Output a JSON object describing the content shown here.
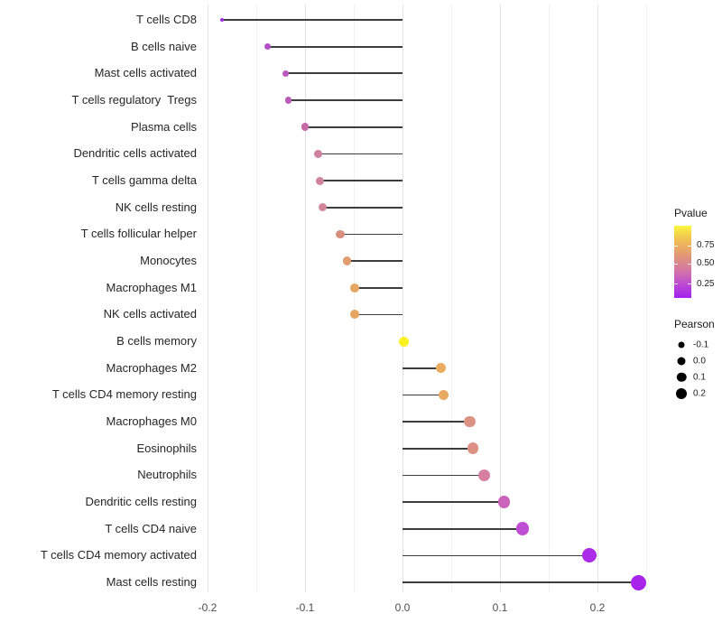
{
  "chart_data": {
    "type": "scatter",
    "subtype": "lollipop",
    "title": "",
    "xlabel": "",
    "ylabel": "",
    "xlim": [
      -0.207,
      0.263
    ],
    "grid": "vertical-only",
    "x_axis": {
      "major_ticks": [
        -0.2,
        -0.1,
        0.0,
        0.1,
        0.2
      ],
      "major_tick_labels": [
        "-0.2",
        "-0.1",
        "0.0",
        "0.1",
        "0.2"
      ],
      "minor_ticks": [
        -0.15,
        -0.05,
        0.05,
        0.15,
        0.25
      ]
    },
    "points": [
      {
        "label": "T cells CD8",
        "pearson": -0.185,
        "color": "#9C2EE3",
        "size": 4.5
      },
      {
        "label": "B cells naive",
        "pearson": -0.138,
        "color": "#B350C8",
        "size": 7
      },
      {
        "label": "Mast cells activated",
        "pearson": -0.12,
        "color": "#BA58BE",
        "size": 7.5
      },
      {
        "label": "T cells regulatory  Tregs",
        "pearson": -0.117,
        "color": "#BC5BBB",
        "size": 7.5
      },
      {
        "label": "Plasma cells",
        "pearson": -0.1,
        "color": "#C76BA8",
        "size": 8.5
      },
      {
        "label": "Dendritic cells activated",
        "pearson": -0.087,
        "color": "#D07F9D",
        "size": 9
      },
      {
        "label": "T cells gamma delta",
        "pearson": -0.085,
        "color": "#D1829B",
        "size": 9
      },
      {
        "label": "NK cells resting",
        "pearson": -0.082,
        "color": "#D28598",
        "size": 9
      },
      {
        "label": "T cells follicular helper",
        "pearson": -0.064,
        "color": "#D98F7F",
        "size": 9.5
      },
      {
        "label": "Monocytes",
        "pearson": -0.057,
        "color": "#E19C6F",
        "size": 9.5
      },
      {
        "label": "Macrophages M1",
        "pearson": -0.049,
        "color": "#E6A663",
        "size": 10
      },
      {
        "label": "NK cells activated",
        "pearson": -0.049,
        "color": "#E6A661",
        "size": 10
      },
      {
        "label": "B cells memory",
        "pearson": 0.001,
        "color": "#F8F222",
        "size": 11
      },
      {
        "label": "Macrophages M2",
        "pearson": 0.039,
        "color": "#E9AB5D",
        "size": 11
      },
      {
        "label": "T cells CD4 memory resting",
        "pearson": 0.042,
        "color": "#E8A960",
        "size": 11.5
      },
      {
        "label": "Macrophages M0",
        "pearson": 0.069,
        "color": "#DC9283",
        "size": 12.5
      },
      {
        "label": "Eosinophils",
        "pearson": 0.072,
        "color": "#DC9184",
        "size": 12.5
      },
      {
        "label": "Neutrophils",
        "pearson": 0.084,
        "color": "#D67F9E",
        "size": 13
      },
      {
        "label": "Dendritic cells resting",
        "pearson": 0.104,
        "color": "#CA63B9",
        "size": 13.5
      },
      {
        "label": "T cells CD4 naive",
        "pearson": 0.123,
        "color": "#C04ED4",
        "size": 14.5
      },
      {
        "label": "T cells CD4 memory activated",
        "pearson": 0.192,
        "color": "#AC2BE8",
        "size": 16
      },
      {
        "label": "Mast cells resting",
        "pearson": 0.242,
        "color": "#A824EA",
        "size": 17
      }
    ],
    "legends": {
      "pvalue": {
        "title": "Pvalue",
        "tick_labels": [
          "0.75",
          "0.50",
          "0.25"
        ],
        "tick_pos_pct": [
          27.5,
          52.5,
          81
        ],
        "gradient_stops": [
          [
            "#FBF63E",
            0
          ],
          [
            "#F3D04B",
            13
          ],
          [
            "#EDAF60",
            27.5
          ],
          [
            "#E29A74",
            40
          ],
          [
            "#D98690",
            52.5
          ],
          [
            "#D06DB0",
            66
          ],
          [
            "#BC4BD2",
            81
          ],
          [
            "#A321F0",
            100
          ]
        ]
      },
      "pearson": {
        "title": "Pearson",
        "dot_color": "#000000",
        "entries": [
          {
            "label": "-0.1",
            "size": 7
          },
          {
            "label": "0.0",
            "size": 9
          },
          {
            "label": "0.1",
            "size": 10.5
          },
          {
            "label": "0.2",
            "size": 12
          }
        ]
      }
    }
  }
}
